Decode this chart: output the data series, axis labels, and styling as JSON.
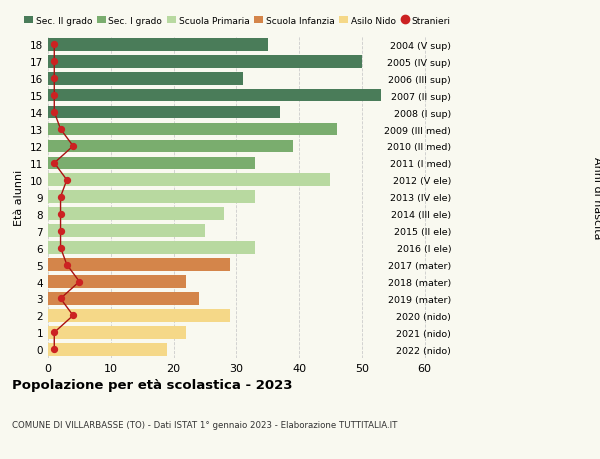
{
  "ages": [
    18,
    17,
    16,
    15,
    14,
    13,
    12,
    11,
    10,
    9,
    8,
    7,
    6,
    5,
    4,
    3,
    2,
    1,
    0
  ],
  "years": [
    "2004 (V sup)",
    "2005 (IV sup)",
    "2006 (III sup)",
    "2007 (II sup)",
    "2008 (I sup)",
    "2009 (III med)",
    "2010 (II med)",
    "2011 (I med)",
    "2012 (V ele)",
    "2013 (IV ele)",
    "2014 (III ele)",
    "2015 (II ele)",
    "2016 (I ele)",
    "2017 (mater)",
    "2018 (mater)",
    "2019 (mater)",
    "2020 (nido)",
    "2021 (nido)",
    "2022 (nido)"
  ],
  "values": [
    35,
    50,
    31,
    53,
    37,
    46,
    39,
    33,
    45,
    33,
    28,
    25,
    33,
    29,
    22,
    24,
    29,
    22,
    19
  ],
  "stranieri": [
    1,
    1,
    1,
    1,
    1,
    2,
    4,
    1,
    3,
    2,
    2,
    2,
    2,
    3,
    5,
    2,
    4,
    1,
    1
  ],
  "bar_colors": [
    "#4a7c59",
    "#4a7c59",
    "#4a7c59",
    "#4a7c59",
    "#4a7c59",
    "#7aad6e",
    "#7aad6e",
    "#7aad6e",
    "#b8d9a0",
    "#b8d9a0",
    "#b8d9a0",
    "#b8d9a0",
    "#b8d9a0",
    "#d4854a",
    "#d4854a",
    "#d4854a",
    "#f5d888",
    "#f5d888",
    "#f5d888"
  ],
  "legend_colors": [
    "#4a7c59",
    "#7aad6e",
    "#b8d9a0",
    "#d4854a",
    "#f5d888",
    "#cc2222"
  ],
  "legend_labels": [
    "Sec. II grado",
    "Sec. I grado",
    "Scuola Primaria",
    "Scuola Infanzia",
    "Asilo Nido",
    "Stranieri"
  ],
  "title": "Popolazione per età scolastica - 2023",
  "subtitle": "COMUNE DI VILLARBASSE (TO) - Dati ISTAT 1° gennaio 2023 - Elaborazione TUTTITALIA.IT",
  "ylabel": "Età alunni",
  "ylabel_right": "Anni di nascita",
  "xlim": [
    0,
    65
  ],
  "xticks": [
    0,
    10,
    20,
    30,
    40,
    50,
    60
  ],
  "background_color": "#f9f9f0",
  "grid_color": "#cccccc",
  "stranieri_color": "#cc2222",
  "stranieri_line_color": "#aa1111"
}
